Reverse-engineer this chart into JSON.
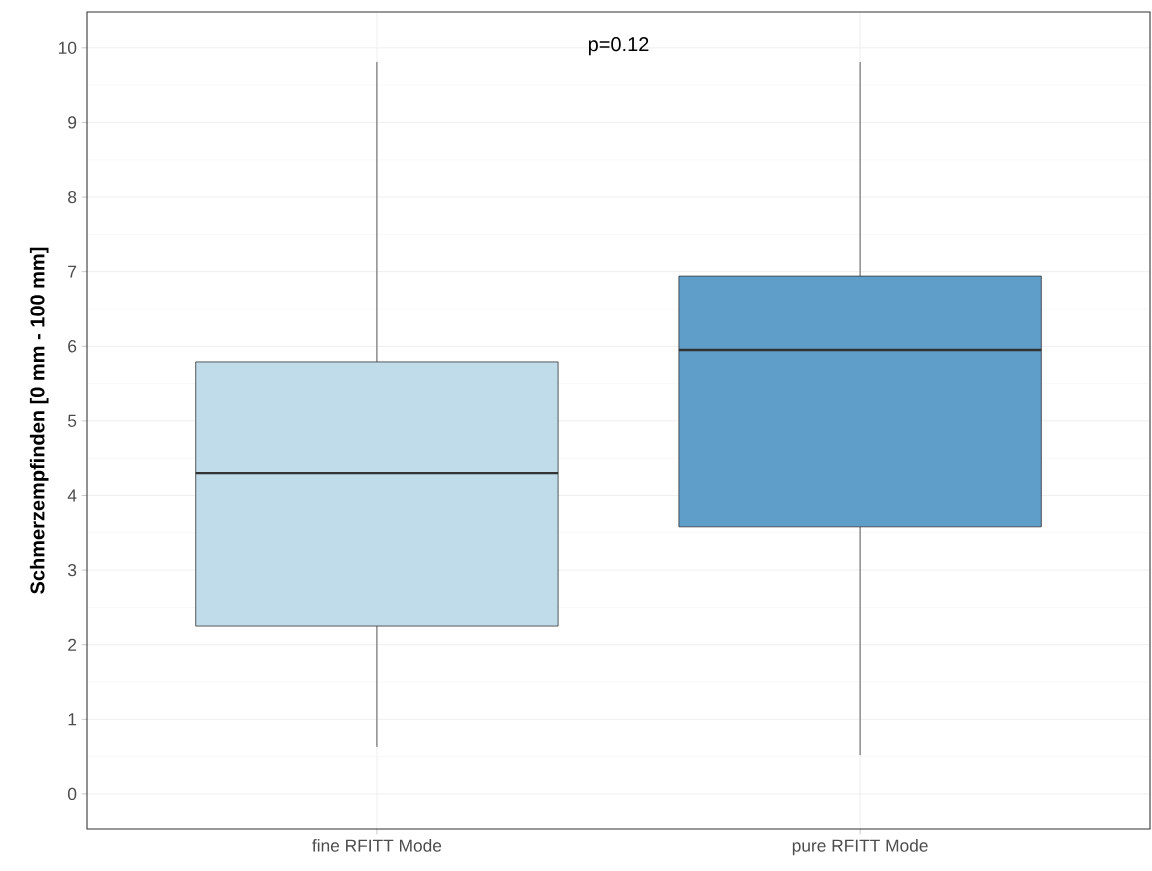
{
  "chart_data": {
    "type": "box",
    "ylabel": "Schmerzempfinden [0 mm - 100 mm]",
    "categories": [
      "fine RFITT Mode",
      "pure RFITT Mode"
    ],
    "boxes": [
      {
        "low": 0.63,
        "q1": 2.25,
        "median": 4.3,
        "q3": 5.79,
        "high": 9.81
      },
      {
        "low": 0.52,
        "q1": 3.58,
        "median": 5.95,
        "q3": 6.94,
        "high": 9.81
      }
    ],
    "colors": [
      "#c0dbe9",
      "#5f9ec9"
    ],
    "ylim": [
      -0.47,
      10.48
    ],
    "yticks": [
      0,
      1,
      2,
      3,
      4,
      5,
      6,
      7,
      8,
      9,
      10
    ],
    "grid": true,
    "annotations": [
      "p=0.12"
    ]
  }
}
